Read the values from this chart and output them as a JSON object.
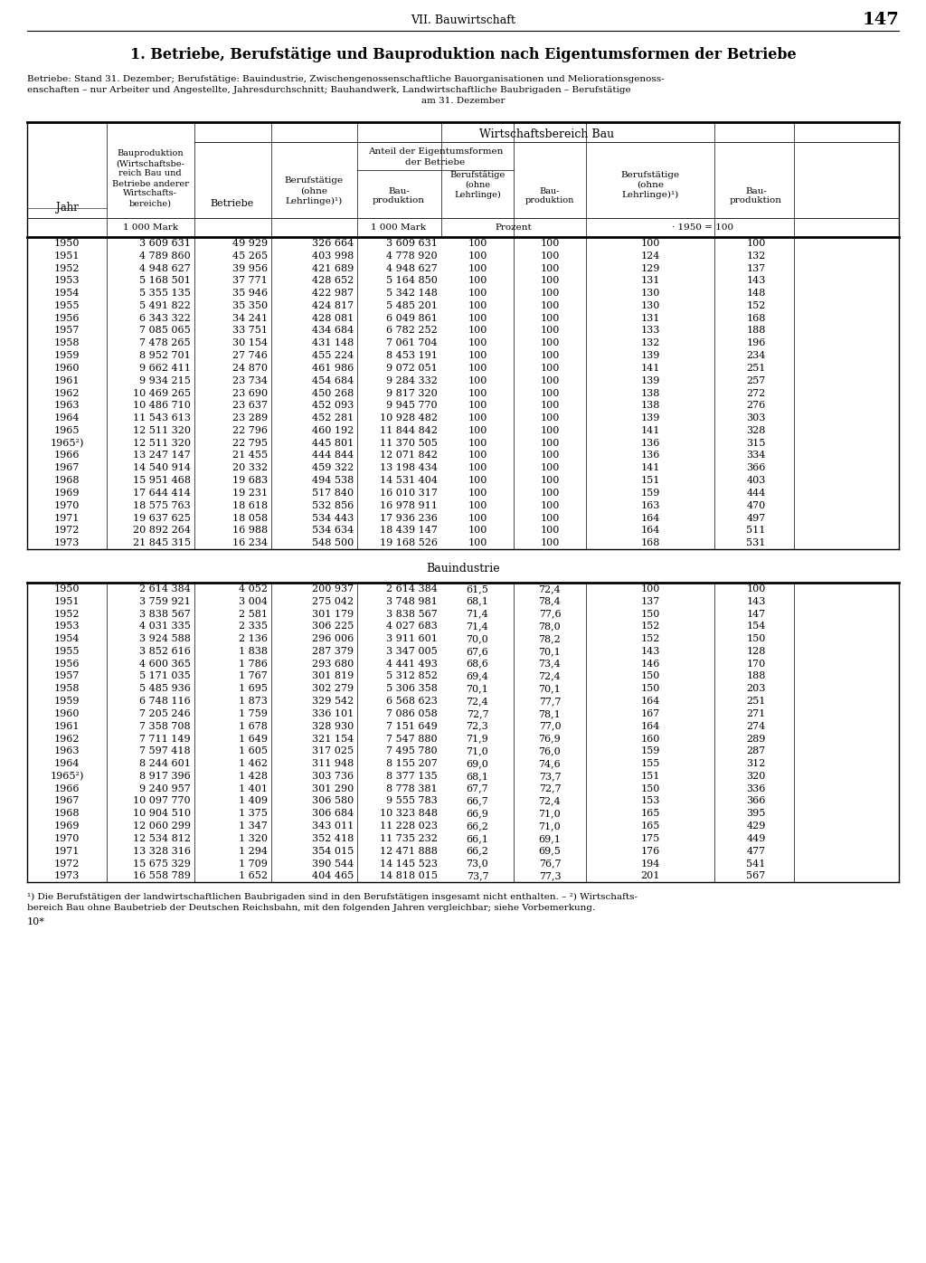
{
  "page_header": "VII. Bauwirtschaft",
  "page_number": "147",
  "title": "1. Betriebe, Berufstätige und Bauproduktion nach Eigentumsformen der Betriebe",
  "subtitle_line1": "Betriebe: Stand 31. Dezember; Berufstätige: Bauindustrie, Zwischengenossenschaftliche Bauorganisationen und Meliorationsgenoss-",
  "subtitle_line2": "enschaften – nur Arbeiter und Angestellte, Jahresdurchschnitt; Bauhandwerk, Landwirtschaftliche Baubrigaden – Berufstätige",
  "subtitle_line3": "am 31. Dezember",
  "footnote_line1": "¹) Die Berufstätigen der landwirtschaftlichen Baubrigaden sind in den Berufstätigen insgesamt nicht enthalten. – ²) Wirtschafts-",
  "footnote_line2": "bereich Bau ohne Baubetrieb der Deutschen Reichsbahn, mit den folgenden Jahren vergleichbar; siehe Vorbemerkung.",
  "footnote3": "10*",
  "section2_header": "Bauindustrie",
  "div_x": [
    30,
    118,
    215,
    300,
    395,
    488,
    568,
    648,
    790,
    878,
    994
  ],
  "col_centers": {
    "jahr": 74,
    "col1": 166,
    "col2": 257,
    "col3": 347,
    "col4": 441,
    "col5": 528,
    "col6": 608,
    "col7": 719,
    "col8": 836,
    "col9": 936
  },
  "table1": {
    "years": [
      "1950",
      "1951",
      "1952",
      "1953",
      "1954",
      "1955",
      "1956",
      "1957",
      "1958",
      "1959",
      "1960",
      "1961",
      "1962",
      "1963",
      "1964",
      "1965",
      "1965²)",
      "1966",
      "1967",
      "1968",
      "1969",
      "1970",
      "1971",
      "1972",
      "1973"
    ],
    "col1": [
      "3 609 631",
      "4 789 860",
      "4 948 627",
      "5 168 501",
      "5 355 135",
      "5 491 822",
      "6 343 322",
      "7 085 065",
      "7 478 265",
      "8 952 701",
      "9 662 411",
      "9 934 215",
      "10 469 265",
      "10 486 710",
      "11 543 613",
      "12 511 320",
      "12 511 320",
      "13 247 147",
      "14 540 914",
      "15 951 468",
      "17 644 414",
      "18 575 763",
      "19 637 625",
      "20 892 264",
      "21 845 315"
    ],
    "col2": [
      "49 929",
      "45 265",
      "39 956",
      "37 771",
      "35 946",
      "35 350",
      "34 241",
      "33 751",
      "30 154",
      "27 746",
      "24 870",
      "23 734",
      "23 690",
      "23 637",
      "23 289",
      "22 796",
      "22 795",
      "21 455",
      "20 332",
      "19 683",
      "19 231",
      "18 618",
      "18 058",
      "16 988",
      "16 234"
    ],
    "col3": [
      "326 664",
      "403 998",
      "421 689",
      "428 652",
      "422 987",
      "424 817",
      "428 081",
      "434 684",
      "431 148",
      "455 224",
      "461 986",
      "454 684",
      "450 268",
      "452 093",
      "452 281",
      "460 192",
      "445 801",
      "444 844",
      "459 322",
      "494 538",
      "517 840",
      "532 856",
      "534 443",
      "534 634",
      "548 500"
    ],
    "col4": [
      "3 609 631",
      "4 778 920",
      "4 948 627",
      "5 164 850",
      "5 342 148",
      "5 485 201",
      "6 049 861",
      "6 782 252",
      "7 061 704",
      "8 453 191",
      "9 072 051",
      "9 284 332",
      "9 817 320",
      "9 945 770",
      "10 928 482",
      "11 844 842",
      "11 370 505",
      "12 071 842",
      "13 198 434",
      "14 531 404",
      "16 010 317",
      "16 978 911",
      "17 936 236",
      "18 439 147",
      "19 168 526"
    ],
    "col5": [
      "100",
      "100",
      "100",
      "100",
      "100",
      "100",
      "100",
      "100",
      "100",
      "100",
      "100",
      "100",
      "100",
      "100",
      "100",
      "100",
      "100",
      "100",
      "100",
      "100",
      "100",
      "100",
      "100",
      "100",
      "100"
    ],
    "col6": [
      "100",
      "100",
      "100",
      "100",
      "100",
      "100",
      "100",
      "100",
      "100",
      "100",
      "100",
      "100",
      "100",
      "100",
      "100",
      "100",
      "100",
      "100",
      "100",
      "100",
      "100",
      "100",
      "100",
      "100",
      "100"
    ],
    "col7": [
      "100",
      "124",
      "129",
      "131",
      "130",
      "130",
      "131",
      "133",
      "132",
      "139",
      "141",
      "139",
      "138",
      "138",
      "139",
      "141",
      "136",
      "136",
      "141",
      "151",
      "159",
      "163",
      "164",
      "164",
      "168"
    ],
    "col8": [
      "100",
      "132",
      "137",
      "143",
      "148",
      "152",
      "168",
      "188",
      "196",
      "234",
      "251",
      "257",
      "272",
      "276",
      "303",
      "328",
      "315",
      "334",
      "366",
      "403",
      "444",
      "470",
      "497",
      "511",
      "531"
    ]
  },
  "table2": {
    "years": [
      "1950",
      "1951",
      "1952",
      "1953",
      "1954",
      "1955",
      "1956",
      "1957",
      "1958",
      "1959",
      "1960",
      "1961",
      "1962",
      "1963",
      "1964",
      "1965²)",
      "1966",
      "1967",
      "1968",
      "1969",
      "1970",
      "1971",
      "1972",
      "1973"
    ],
    "col1": [
      "2 614 384",
      "3 759 921",
      "3 838 567",
      "4 031 335",
      "3 924 588",
      "3 852 616",
      "4 600 365",
      "5 171 035",
      "5 485 936",
      "6 748 116",
      "7 205 246",
      "7 358 708",
      "7 711 149",
      "7 597 418",
      "8 244 601",
      "8 917 396",
      "9 240 957",
      "10 097 770",
      "10 904 510",
      "12 060 299",
      "12 534 812",
      "13 328 316",
      "15 675 329",
      "16 558 789"
    ],
    "col2": [
      "4 052",
      "3 004",
      "2 581",
      "2 335",
      "2 136",
      "1 838",
      "1 786",
      "1 767",
      "1 695",
      "1 873",
      "1 759",
      "1 678",
      "1 649",
      "1 605",
      "1 462",
      "1 428",
      "1 401",
      "1 409",
      "1 375",
      "1 347",
      "1 320",
      "1 294",
      "1 709",
      "1 652"
    ],
    "col3": [
      "200 937",
      "275 042",
      "301 179",
      "306 225",
      "296 006",
      "287 379",
      "293 680",
      "301 819",
      "302 279",
      "329 542",
      "336 101",
      "328 930",
      "321 154",
      "317 025",
      "311 948",
      "303 736",
      "301 290",
      "306 580",
      "306 684",
      "343 011",
      "352 418",
      "354 015",
      "390 544",
      "404 465"
    ],
    "col4": [
      "2 614 384",
      "3 748 981",
      "3 838 567",
      "4 027 683",
      "3 911 601",
      "3 347 005",
      "4 441 493",
      "5 312 852",
      "5 306 358",
      "6 568 623",
      "7 086 058",
      "7 151 649",
      "7 547 880",
      "7 495 780",
      "8 155 207",
      "8 377 135",
      "8 778 381",
      "9 555 783",
      "10 323 848",
      "11 228 023",
      "11 735 232",
      "12 471 888",
      "14 145 523",
      "14 818 015"
    ],
    "col5": [
      "61,5",
      "68,1",
      "71,4",
      "71,4",
      "70,0",
      "67,6",
      "68,6",
      "69,4",
      "70,1",
      "72,4",
      "72,7",
      "72,3",
      "71,9",
      "71,0",
      "69,0",
      "68,1",
      "67,7",
      "66,7",
      "66,9",
      "66,2",
      "66,1",
      "66,2",
      "73,0",
      "73,7"
    ],
    "col6": [
      "72,4",
      "78,4",
      "77,6",
      "78,0",
      "78,2",
      "70,1",
      "73,4",
      "72,4",
      "70,1",
      "77,7",
      "78,1",
      "77,0",
      "76,9",
      "76,0",
      "74,6",
      "73,7",
      "72,7",
      "72,4",
      "71,0",
      "71,0",
      "69,1",
      "69,5",
      "76,7",
      "77,3"
    ],
    "col7": [
      "100",
      "137",
      "150",
      "152",
      "152",
      "143",
      "146",
      "150",
      "150",
      "164",
      "167",
      "164",
      "160",
      "159",
      "155",
      "151",
      "150",
      "153",
      "165",
      "165",
      "175",
      "176",
      "194",
      "201"
    ],
    "col8": [
      "100",
      "143",
      "147",
      "154",
      "150",
      "128",
      "170",
      "188",
      "203",
      "251",
      "271",
      "274",
      "289",
      "287",
      "312",
      "320",
      "336",
      "366",
      "395",
      "429",
      "449",
      "477",
      "541",
      "567"
    ]
  }
}
